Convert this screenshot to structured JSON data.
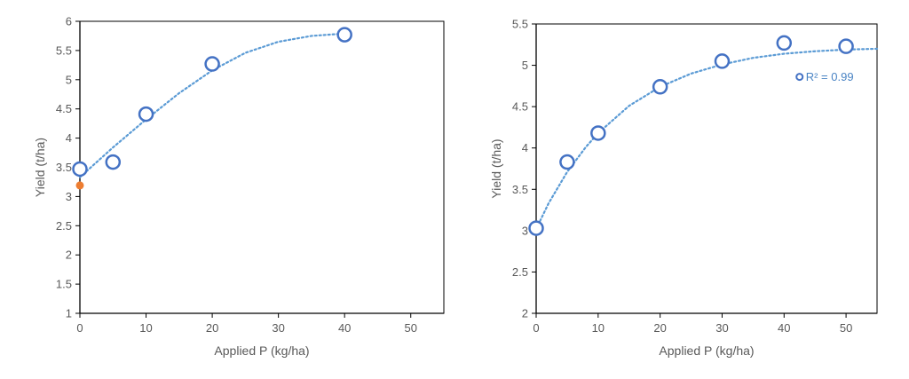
{
  "chart_data": [
    {
      "type": "scatter",
      "title": "",
      "xlabel": "Applied P (kg/ha)",
      "ylabel": "Yield (t/ha)",
      "xlim": [
        0,
        55
      ],
      "ylim": [
        1,
        6
      ],
      "xticks": [
        0,
        10,
        20,
        30,
        40,
        50
      ],
      "yticks": [
        1,
        1.5,
        2,
        2.5,
        3,
        3.5,
        4,
        4.5,
        5,
        5.5,
        6
      ],
      "grid": false,
      "series": [
        {
          "type": "scatter",
          "marker": "open-circle",
          "color": "#4472c4",
          "x": [
            0,
            5,
            10,
            20,
            40
          ],
          "y": [
            3.47,
            3.59,
            4.41,
            5.27,
            5.77
          ]
        },
        {
          "type": "scatter",
          "marker": "filled-dot",
          "color": "#ed7d31",
          "x": [
            0
          ],
          "y": [
            3.19
          ]
        }
      ],
      "trendline": {
        "style": "dotted",
        "color": "#5b9bd5",
        "kind": "polynomial",
        "x": [
          0,
          5,
          10,
          15,
          20,
          25,
          30,
          35,
          40
        ],
        "y": [
          3.33,
          3.84,
          4.32,
          4.77,
          5.16,
          5.46,
          5.65,
          5.75,
          5.79
        ]
      }
    },
    {
      "type": "scatter",
      "title": "",
      "xlabel": "Applied P (kg/ha)",
      "ylabel": "Yield (t/ha)",
      "xlim": [
        0,
        55
      ],
      "ylim": [
        2,
        5.5
      ],
      "xticks": [
        0,
        10,
        20,
        30,
        40,
        50
      ],
      "yticks": [
        2,
        2.5,
        3,
        3.5,
        4,
        4.5,
        5,
        5.5
      ],
      "grid": false,
      "series": [
        {
          "type": "scatter",
          "marker": "open-circle",
          "color": "#4472c4",
          "x": [
            0,
            5,
            10,
            20,
            30,
            40,
            50
          ],
          "y": [
            3.03,
            3.83,
            4.18,
            4.74,
            5.05,
            5.27,
            5.23
          ]
        }
      ],
      "trendline": {
        "style": "dotted",
        "color": "#5b9bd5",
        "kind": "exponential",
        "x": [
          0,
          2,
          5,
          8,
          10,
          15,
          20,
          25,
          30,
          35,
          40,
          45,
          50,
          55
        ],
        "y": [
          3.02,
          3.33,
          3.71,
          4.01,
          4.18,
          4.51,
          4.74,
          4.9,
          5.01,
          5.09,
          5.14,
          5.17,
          5.19,
          5.2
        ]
      },
      "annotation": {
        "text": "R² = 0.99",
        "anchor_x": 42.5,
        "anchor_y": 4.86
      }
    }
  ]
}
